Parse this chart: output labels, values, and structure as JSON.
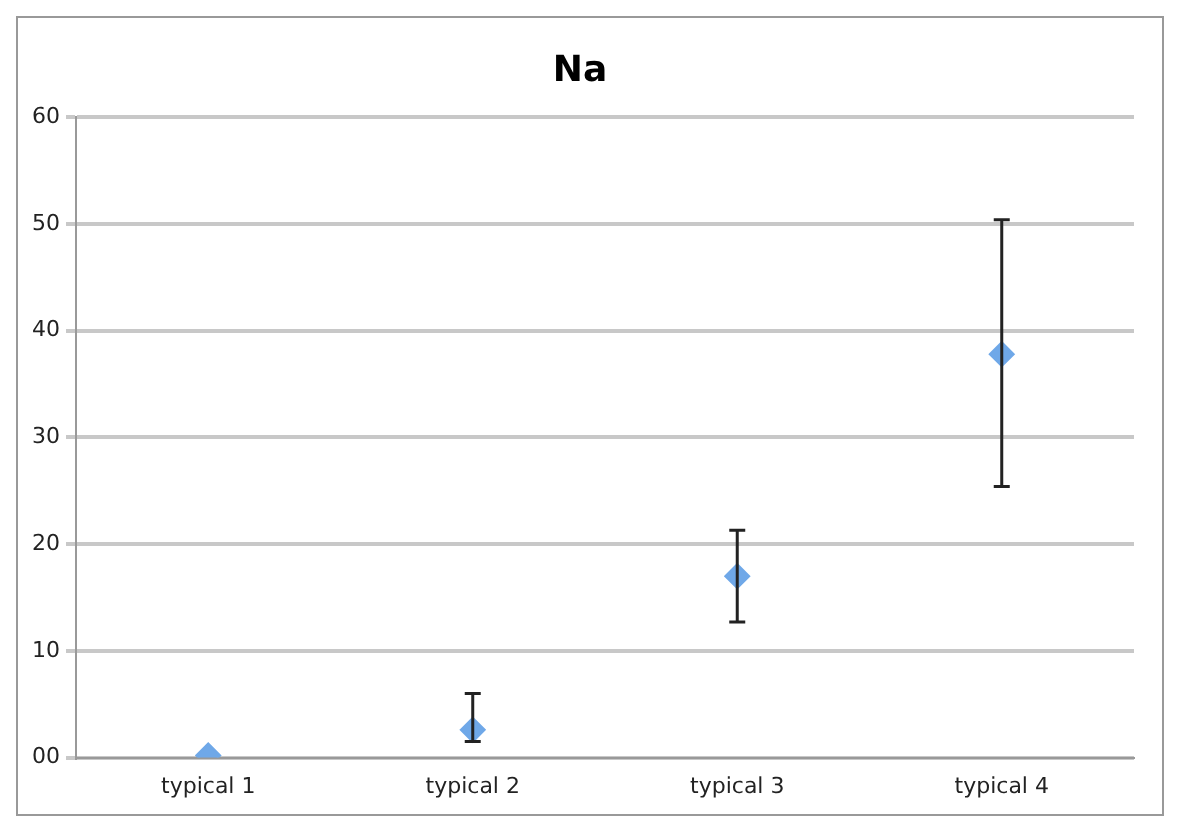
{
  "chart_data": {
    "type": "scatter",
    "title": "Na",
    "categories": [
      "typical 1",
      "typical 2",
      "typical 3",
      "typical 4"
    ],
    "series": [
      {
        "color": "#6fa8e8",
        "values": [
          0.2,
          2.6,
          17.0,
          37.8
        ],
        "errors": [
          null,
          [
            1.5,
            6.0
          ],
          [
            12.7,
            21.3
          ],
          [
            25.4,
            50.4
          ]
        ]
      }
    ],
    "ylim": [
      0,
      60
    ],
    "yticks": [
      {
        "value": 0,
        "label": "00"
      },
      10,
      20,
      30,
      40,
      50,
      60
    ],
    "grid": "y",
    "marker": "diamond",
    "legend": false
  }
}
